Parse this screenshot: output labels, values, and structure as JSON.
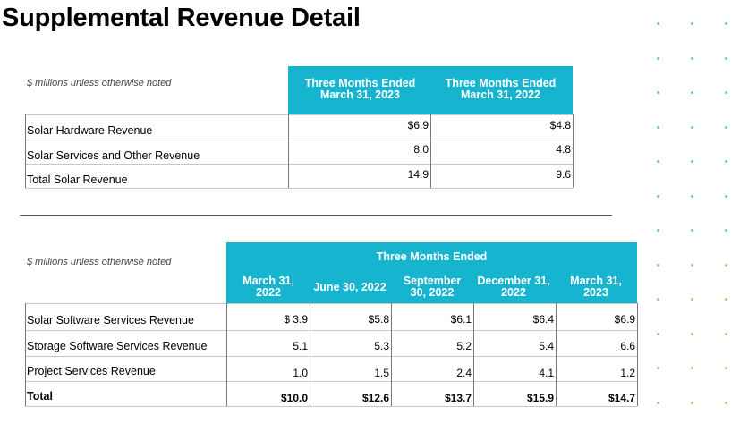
{
  "page_title": "Supplemental Revenue Detail",
  "table1": {
    "note": "$ millions unless otherwise noted",
    "columns": [
      "Three Months Ended March 31, 2023",
      "Three Months Ended March 31, 2022"
    ],
    "rows": [
      {
        "label": "Solar Hardware Revenue",
        "values": [
          "$6.9",
          "$4.8"
        ]
      },
      {
        "label": "Solar Services and Other Revenue",
        "values": [
          "8.0",
          "4.8"
        ]
      },
      {
        "label": "Total Solar Revenue",
        "values": [
          "14.9",
          "9.6"
        ]
      }
    ]
  },
  "table2": {
    "note": "$ millions unless otherwise noted",
    "group_header": "Three Months Ended",
    "columns": [
      "March 31, 2022",
      "June 30, 2022",
      "September 30, 2022",
      "December 31, 2022",
      "March 31, 2023"
    ],
    "rows": [
      {
        "label": "Solar Software Services Revenue",
        "values": [
          "$ 3.9",
          "$5.8",
          "$6.1",
          "$6.4",
          "$6.9"
        ]
      },
      {
        "label": "Storage Software Services Revenue",
        "values": [
          "5.1",
          "5.3",
          "5.2",
          "5.4",
          "6.6"
        ]
      },
      {
        "label": "Project Services Revenue",
        "values": [
          "1.0",
          "1.5",
          "2.4",
          "4.1",
          "1.2"
        ]
      },
      {
        "label": "Total",
        "values": [
          "$10.0",
          "$12.6",
          "$13.7",
          "$15.9",
          "$14.7"
        ],
        "bold": true
      }
    ]
  },
  "colors": {
    "header_bg": "#17b4cf",
    "dot_blue": "#6cc8e6",
    "dot_green": "#8fdc7a"
  }
}
